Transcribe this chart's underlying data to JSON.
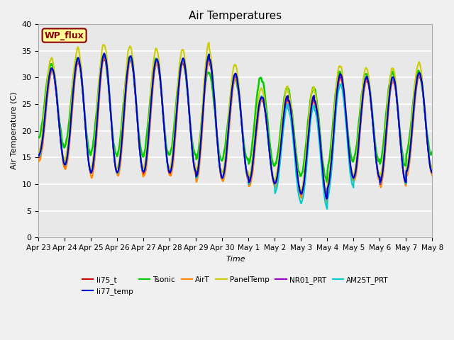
{
  "title": "Air Temperatures",
  "xlabel": "Time",
  "ylabel": "Air Temperature (C)",
  "ylim": [
    0,
    40
  ],
  "yticks": [
    0,
    5,
    10,
    15,
    20,
    25,
    30,
    35,
    40
  ],
  "fig_bg_color": "#f0f0f0",
  "plot_bg_color": "#e8e8e8",
  "grid_color": "#ffffff",
  "annotation_text": "WP_flux",
  "annotation_bg": "#ffff99",
  "annotation_border": "#8B0000",
  "annotation_text_color": "#8B0000",
  "series": [
    {
      "label": "li75_t",
      "color": "#cc0000",
      "lw": 1.2,
      "zorder": 4
    },
    {
      "label": "li77_temp",
      "color": "#0000cc",
      "lw": 1.5,
      "zorder": 5
    },
    {
      "label": "Tsonic",
      "color": "#00cc00",
      "lw": 1.8,
      "zorder": 3
    },
    {
      "label": "AirT",
      "color": "#ff8800",
      "lw": 1.5,
      "zorder": 4
    },
    {
      "label": "PanelTemp",
      "color": "#cccc00",
      "lw": 1.5,
      "zorder": 4
    },
    {
      "label": "NR01_PRT",
      "color": "#9900cc",
      "lw": 1.5,
      "zorder": 4
    },
    {
      "label": "AM25T_PRT",
      "color": "#00cccc",
      "lw": 1.5,
      "zorder": 4
    }
  ],
  "tick_labels": [
    "Apr 23",
    "Apr 24",
    "Apr 25",
    "Apr 26",
    "Apr 27",
    "Apr 28",
    "Apr 29",
    "Apr 30",
    "May 1",
    "May 2",
    "May 3",
    "May 4",
    "May 5",
    "May 6",
    "May 7",
    "May 8"
  ]
}
